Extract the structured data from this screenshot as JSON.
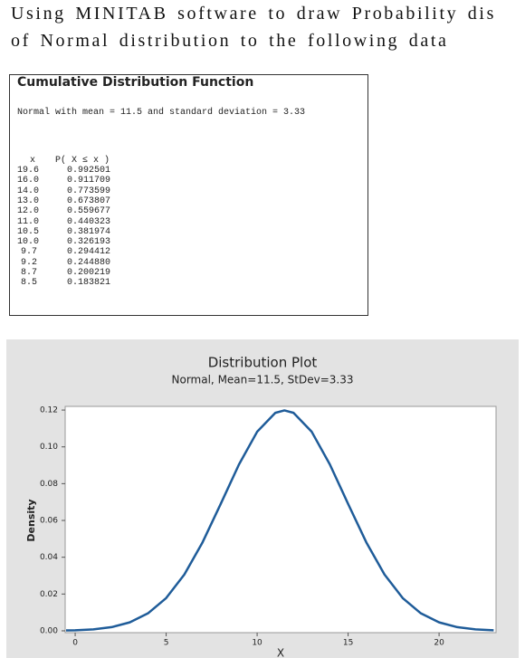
{
  "intro": {
    "line1": "Using MINITAB software to draw Probability dis",
    "line2": "of Normal distribution to the following data"
  },
  "table": {
    "title": "Cumulative Distribution Function",
    "subtitle": "Normal with mean = 11.5 and standard deviation = 3.33",
    "header": [
      "x",
      "P( X ≤ x )"
    ],
    "rows": [
      [
        "19.6",
        "0.992501"
      ],
      [
        "16.0",
        "0.911709"
      ],
      [
        "14.0",
        "0.773599"
      ],
      [
        "13.0",
        "0.673807"
      ],
      [
        "12.0",
        "0.559677"
      ],
      [
        "11.0",
        "0.440323"
      ],
      [
        "10.5",
        "0.381974"
      ],
      [
        "10.0",
        "0.326193"
      ],
      [
        "9.7",
        "0.294412"
      ],
      [
        "9.2",
        "0.244880"
      ],
      [
        "8.7",
        "0.200219"
      ],
      [
        "8.5",
        "0.183821"
      ]
    ]
  },
  "chart_data": {
    "type": "line",
    "title": "Distribution Plot",
    "subtitle": "Normal, Mean=11.5, StDev=3.33",
    "x_label": "X",
    "y_label": "Density",
    "x": [
      -0.5,
      0,
      1,
      2,
      3,
      4,
      5,
      6,
      7,
      8,
      9,
      10,
      11,
      11.5,
      12,
      13,
      14,
      15,
      16,
      17,
      18,
      19,
      20,
      21,
      22,
      23
    ],
    "series": [
      {
        "color": "#1f5c99",
        "values": [
          0.0002,
          0.0003,
          0.0008,
          0.002,
          0.0046,
          0.0095,
          0.0178,
          0.0306,
          0.0481,
          0.069,
          0.0904,
          0.1082,
          0.1185,
          0.1198,
          0.1185,
          0.1082,
          0.0904,
          0.069,
          0.0481,
          0.0306,
          0.0178,
          0.0095,
          0.0046,
          0.002,
          0.0008,
          0.0003
        ]
      }
    ],
    "xlim": [
      -0.55,
      23.13
    ],
    "xticks": [
      0,
      5,
      10,
      15,
      20
    ],
    "ylim": [
      -0.001,
      0.122
    ],
    "yticks": [
      {
        "value": 0,
        "label": "0.00"
      },
      {
        "value": 0.02,
        "label": "0.02"
      },
      {
        "value": 0.04,
        "label": "0.04"
      },
      {
        "value": 0.06,
        "label": "0.06"
      },
      {
        "value": 0.08,
        "label": "0.08"
      },
      {
        "value": 0.1,
        "label": "0.10"
      },
      {
        "value": 0.12,
        "label": "0.12"
      }
    ]
  }
}
